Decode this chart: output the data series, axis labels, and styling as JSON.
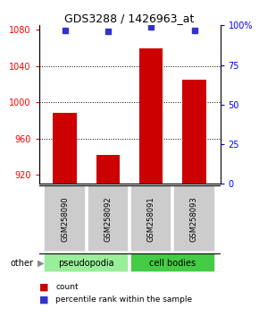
{
  "title": "GDS3288 / 1426963_at",
  "samples": [
    "GSM258090",
    "GSM258092",
    "GSM258091",
    "GSM258093"
  ],
  "bar_values": [
    988,
    942,
    1060,
    1025
  ],
  "dot_values": [
    97,
    96,
    99,
    97
  ],
  "bar_color": "#cc0000",
  "dot_color": "#3333cc",
  "ylim_left": [
    910,
    1085
  ],
  "ylim_right": [
    0,
    100
  ],
  "yticks_left": [
    920,
    960,
    1000,
    1040,
    1080
  ],
  "yticks_right": [
    0,
    25,
    50,
    75,
    100
  ],
  "ytick_labels_right": [
    "0",
    "25",
    "50",
    "75",
    "100%"
  ],
  "bar_width": 0.55,
  "legend_count_label": "count",
  "legend_pct_label": "percentile rank within the sample",
  "other_label": "other",
  "group_regions": [
    {
      "name": "pseudopodia",
      "start": 0,
      "end": 1,
      "color": "#99ee99"
    },
    {
      "name": "cell bodies",
      "start": 2,
      "end": 3,
      "color": "#44cc44"
    }
  ],
  "gray_box_color": "#cccccc",
  "fig_bg": "#ffffff",
  "title_fontsize": 9,
  "tick_fontsize": 7,
  "label_fontsize": 7,
  "sample_fontsize": 6
}
